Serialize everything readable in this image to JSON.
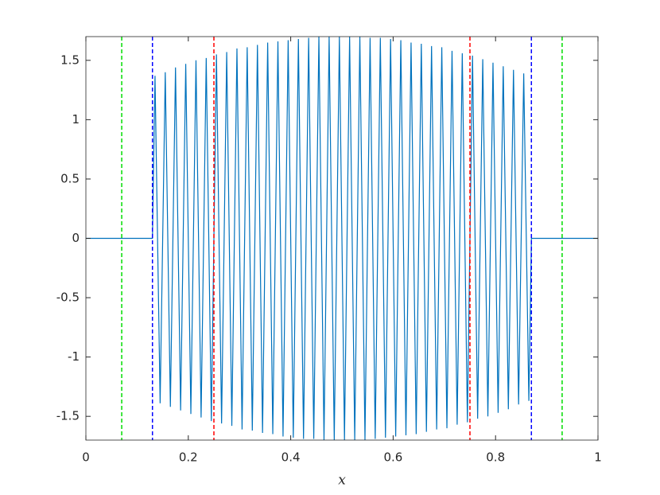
{
  "chart_data": {
    "type": "line",
    "xlabel": "x",
    "xlim": [
      0,
      1
    ],
    "ylim": [
      -1.7,
      1.7
    ],
    "xticks": [
      0,
      0.2,
      0.4,
      0.6,
      0.8,
      1
    ],
    "yticks": [
      -1.5,
      -1,
      -0.5,
      0,
      0.5,
      1,
      1.5
    ],
    "grid": false,
    "box": true,
    "x": [
      0,
      0.13,
      0.135,
      0.145,
      0.155,
      0.165,
      0.175,
      0.185,
      0.195,
      0.205,
      0.215,
      0.225,
      0.235,
      0.245,
      0.255,
      0.265,
      0.275,
      0.285,
      0.295,
      0.305,
      0.315,
      0.325,
      0.335,
      0.345,
      0.355,
      0.365,
      0.375,
      0.385,
      0.395,
      0.405,
      0.415,
      0.425,
      0.435,
      0.445,
      0.455,
      0.465,
      0.475,
      0.485,
      0.495,
      0.505,
      0.515,
      0.525,
      0.535,
      0.545,
      0.555,
      0.565,
      0.575,
      0.585,
      0.595,
      0.605,
      0.615,
      0.625,
      0.635,
      0.645,
      0.655,
      0.665,
      0.675,
      0.685,
      0.695,
      0.705,
      0.715,
      0.725,
      0.735,
      0.745,
      0.755,
      0.765,
      0.775,
      0.785,
      0.795,
      0.805,
      0.815,
      0.825,
      0.835,
      0.845,
      0.855,
      0.865,
      0.87,
      1
    ],
    "series": [
      {
        "color": "#0072bd",
        "values": [
          0,
          0,
          1.37,
          -1.39,
          1.4,
          -1.42,
          1.44,
          -1.45,
          1.47,
          -1.48,
          1.5,
          -1.51,
          1.52,
          -1.54,
          1.55,
          -1.56,
          1.57,
          -1.58,
          1.6,
          -1.61,
          1.61,
          -1.62,
          1.63,
          -1.64,
          1.65,
          -1.65,
          1.66,
          -1.67,
          1.67,
          -1.68,
          1.68,
          -1.69,
          1.69,
          -1.69,
          1.7,
          -1.7,
          1.7,
          -1.7,
          1.7,
          -1.7,
          1.7,
          -1.7,
          1.7,
          -1.7,
          1.69,
          -1.69,
          1.69,
          -1.68,
          1.68,
          -1.67,
          1.67,
          -1.66,
          1.65,
          -1.65,
          1.64,
          -1.63,
          1.62,
          -1.61,
          1.61,
          -1.6,
          1.58,
          -1.57,
          1.56,
          -1.55,
          1.54,
          -1.52,
          1.51,
          -1.5,
          1.48,
          -1.47,
          1.45,
          -1.44,
          1.42,
          -1.4,
          1.39,
          -1.37,
          0,
          0
        ]
      }
    ],
    "vlines": [
      {
        "x": 0.07,
        "color": "#00dd00"
      },
      {
        "x": 0.13,
        "color": "#0000ff"
      },
      {
        "x": 0.25,
        "color": "#ff0000"
      },
      {
        "x": 0.75,
        "color": "#ff0000"
      },
      {
        "x": 0.87,
        "color": "#0000ff"
      },
      {
        "x": 0.93,
        "color": "#00dd00"
      }
    ]
  }
}
